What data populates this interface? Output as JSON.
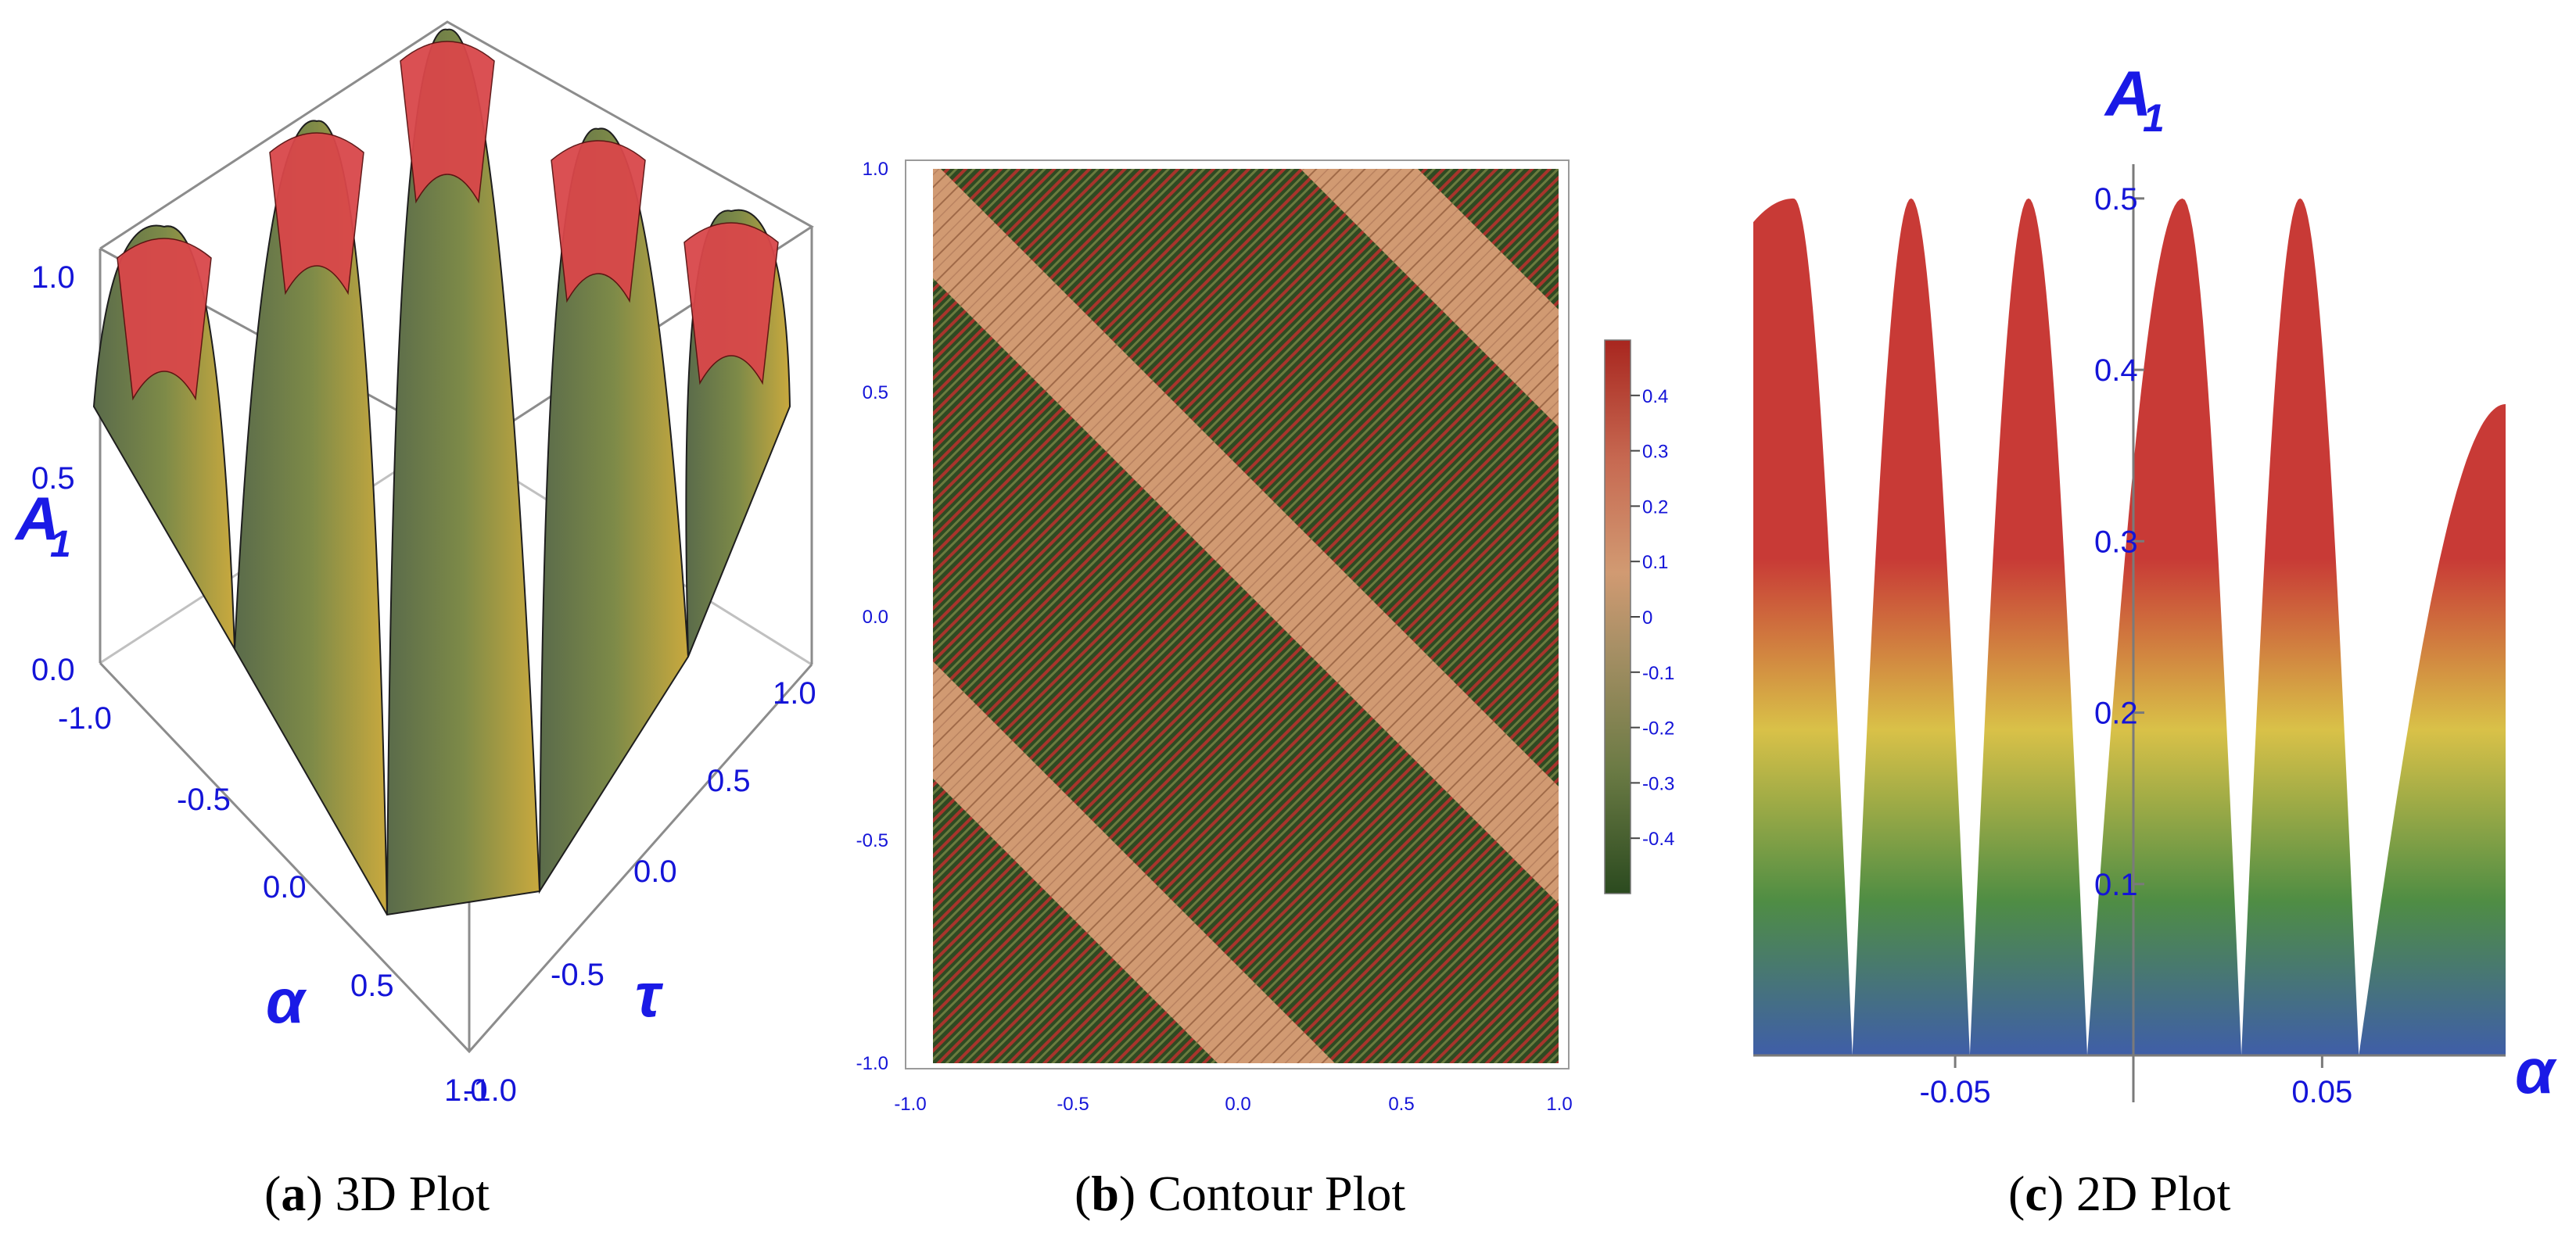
{
  "captions": [
    {
      "letter": "a",
      "rest": ") 3D Plot"
    },
    {
      "letter": "b",
      "rest": ") Contour Plot"
    },
    {
      "letter": "c",
      "rest": ") 2D Plot"
    }
  ],
  "colors": {
    "peak_red": "#c83a36",
    "mid_yellow": "#e0c34a",
    "green": "#5d9a3a",
    "valley_blue": "#3f5ea8",
    "tick_blue": "#1414d8",
    "contour_light": "#d19a72",
    "contour_dark_green": "#2e4a22",
    "contour_red": "#a8342c"
  },
  "chart_data": [
    {
      "type": "surface",
      "zlabel_main": "A",
      "zlabel_sub": "1",
      "xlabel": "α",
      "ylabel": "τ",
      "z_ticks": [
        "0.0",
        "0.5",
        "1.0"
      ],
      "alpha_ticks": [
        "-1.0",
        "-0.5",
        "0.0",
        "0.5",
        "1.0"
      ],
      "tau_ticks": [
        "-1.0",
        "-0.5",
        "0.0",
        "0.5",
        "1.0"
      ],
      "xlim": [
        -1,
        1
      ],
      "ylim": [
        -1,
        1
      ],
      "zlim": [
        0,
        1
      ]
    },
    {
      "type": "heatmap",
      "xlim": [
        -1,
        1
      ],
      "ylim": [
        -1,
        1
      ],
      "x_ticks": [
        "-1.0",
        "-0.5",
        "0.0",
        "0.5",
        "1.0"
      ],
      "y_ticks": [
        "-1.0",
        "-0.5",
        "0.0",
        "0.5",
        "1.0"
      ],
      "colorbar": {
        "ticks": [
          "0.4",
          "0.3",
          "0.2",
          "0.1",
          "0",
          "-0.1",
          "-0.2",
          "-0.3",
          "-0.4"
        ],
        "range": [
          -0.5,
          0.5
        ]
      }
    },
    {
      "type": "area",
      "ylabel_main": "A",
      "ylabel_sub": "1",
      "xlabel": "α",
      "x_ticks": [
        "-0.05",
        "0.05"
      ],
      "y_ticks": [
        "0.1",
        "0.2",
        "0.3",
        "0.4",
        "0.5"
      ],
      "xlim": [
        -0.105,
        0.1
      ],
      "ylim": [
        0,
        0.52
      ],
      "peaks_x": [
        -0.094,
        -0.062,
        -0.03,
        0.012,
        0.044
      ],
      "valleys_x": [
        -0.078,
        -0.046,
        -0.014,
        0.028,
        0.06
      ],
      "peak_value": 0.5,
      "right_end": {
        "x": 0.1,
        "y": 0.38
      }
    }
  ]
}
